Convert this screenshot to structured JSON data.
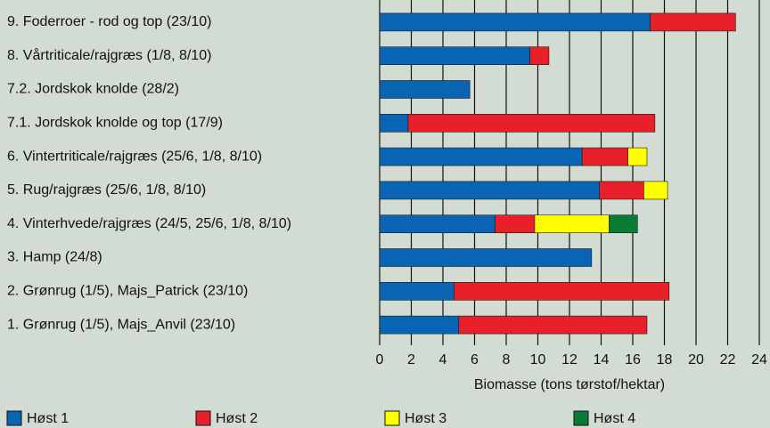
{
  "chart_data": {
    "type": "bar",
    "orientation": "horizontal",
    "stacked": true,
    "categories": [
      "9. Foderroer - rod og top (23/10)",
      "8. Vårtriticale/rajgræs (1/8, 8/10)",
      "7.2. Jordskok knolde (28/2)",
      "7.1. Jordskok knolde og top (17/9)",
      "6. Vintertriticale/rajgræs (25/6, 1/8, 8/10)",
      "5. Rug/rajgræs (25/6, 1/8, 8/10)",
      "4. Vinterhvede/rajgræs (24/5, 25/6, 1/8, 8/10)",
      "3. Hamp (24/8)",
      "2. Grønrug (1/5), Majs_Patrick (23/10)",
      "1. Grønrug (1/5), Majs_Anvil (23/10)"
    ],
    "series": [
      {
        "name": "Høst 1",
        "color": "#0a64b4",
        "values": [
          17.1,
          9.5,
          5.7,
          1.8,
          12.8,
          13.9,
          7.3,
          13.4,
          4.7,
          5.0
        ]
      },
      {
        "name": "Høst 2",
        "color": "#e8202a",
        "values": [
          5.4,
          1.2,
          null,
          15.6,
          2.9,
          2.8,
          2.5,
          null,
          13.6,
          11.9
        ]
      },
      {
        "name": "Høst 3",
        "color": "#ffff00",
        "values": [
          null,
          null,
          null,
          null,
          1.2,
          1.5,
          4.7,
          null,
          null,
          null
        ]
      },
      {
        "name": "Høst 4",
        "color": "#0a7a34",
        "values": [
          null,
          null,
          null,
          null,
          null,
          null,
          1.8,
          null,
          null,
          null
        ]
      }
    ],
    "xlabel": "Biomasse (tons tørstof/hektar)",
    "xlim": [
      0,
      24
    ],
    "xticks": [
      0,
      2,
      4,
      6,
      8,
      10,
      12,
      14,
      16,
      18,
      20,
      22,
      24
    ],
    "grid": true
  }
}
